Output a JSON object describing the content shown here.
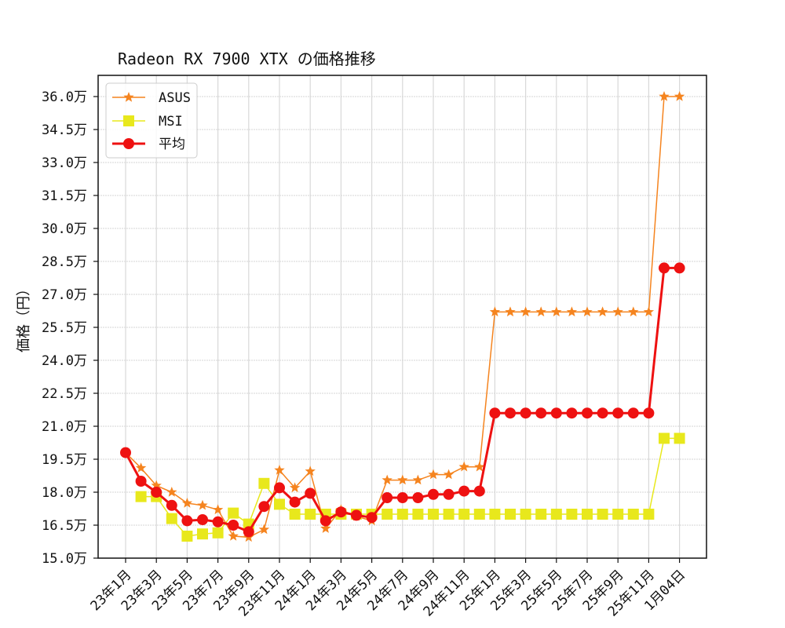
{
  "chart_data": {
    "type": "line",
    "title": "Radeon RX 7900 XTX の価格推移",
    "xlabel": "",
    "ylabel": "価格（円）",
    "ylim": [
      15.0,
      36.0
    ],
    "y_unit": "万",
    "yticks": [
      "15.0万",
      "16.5万",
      "18.0万",
      "19.5万",
      "21.0万",
      "22.5万",
      "24.0万",
      "25.5万",
      "27.0万",
      "28.5万",
      "30.0万",
      "31.5万",
      "33.0万",
      "34.5万",
      "36.0万"
    ],
    "ytick_values": [
      15.0,
      16.5,
      18.0,
      19.5,
      21.0,
      22.5,
      24.0,
      25.5,
      27.0,
      28.5,
      30.0,
      31.5,
      33.0,
      34.5,
      36.0
    ],
    "xticks": [
      "23年1月",
      "23年3月",
      "23年5月",
      "23年7月",
      "23年9月",
      "23年11月",
      "24年1月",
      "24年3月",
      "24年5月",
      "24年7月",
      "24年9月",
      "24年11月",
      "25年1月",
      "25年3月",
      "25年5月",
      "25年7月",
      "25年9月",
      "25年11月",
      "1月04日"
    ],
    "xtick_indices": [
      0,
      2,
      4,
      6,
      8,
      10,
      12,
      14,
      16,
      18,
      20,
      22,
      24,
      26,
      28,
      30,
      32,
      34,
      36
    ],
    "categories": [
      "23/01",
      "23/02",
      "23/03",
      "23/04",
      "23/05",
      "23/06",
      "23/07",
      "23/08",
      "23/09",
      "23/10",
      "23/11",
      "23/12",
      "24/01",
      "24/02",
      "24/03",
      "24/04",
      "24/05",
      "24/06",
      "24/07",
      "24/08",
      "24/09",
      "24/10",
      "24/11",
      "24/12",
      "25/01",
      "25/02",
      "25/03",
      "25/04",
      "25/05",
      "25/06",
      "25/07",
      "25/08",
      "25/09",
      "25/10",
      "25/11",
      "25/12",
      "1月04日"
    ],
    "grid": true,
    "legend_position": "upper left",
    "series": [
      {
        "name": "ASUS",
        "color": "#f5841f",
        "marker": "star",
        "line_width": 1.5,
        "values": [
          19.8,
          19.1,
          18.3,
          18.0,
          17.5,
          17.4,
          17.2,
          16.0,
          15.95,
          16.3,
          19.0,
          18.2,
          18.95,
          16.35,
          17.2,
          16.9,
          16.7,
          18.55,
          18.55,
          18.55,
          18.8,
          18.8,
          19.15,
          19.15,
          26.2,
          26.2,
          26.2,
          26.2,
          26.2,
          26.2,
          26.2,
          26.2,
          26.2,
          26.2,
          26.2,
          36.0,
          36.0
        ]
      },
      {
        "name": "MSI",
        "color": "#e8e81c",
        "marker": "square",
        "line_width": 1.5,
        "values": [
          null,
          17.8,
          17.8,
          16.8,
          16.0,
          16.1,
          16.15,
          17.05,
          16.55,
          18.4,
          17.45,
          17.0,
          17.0,
          17.0,
          17.0,
          17.0,
          17.0,
          17.0,
          17.0,
          17.0,
          17.0,
          17.0,
          17.0,
          17.0,
          17.0,
          17.0,
          17.0,
          17.0,
          17.0,
          17.0,
          17.0,
          17.0,
          17.0,
          17.0,
          17.0,
          20.45,
          20.45
        ]
      },
      {
        "name": "平均",
        "color": "#ee1111",
        "marker": "circle",
        "line_width": 3,
        "values": [
          19.8,
          18.5,
          18.0,
          17.4,
          16.7,
          16.75,
          16.65,
          16.5,
          16.2,
          17.35,
          18.2,
          17.55,
          17.95,
          16.7,
          17.1,
          16.95,
          16.85,
          17.75,
          17.75,
          17.75,
          17.9,
          17.9,
          18.05,
          18.05,
          21.6,
          21.6,
          21.6,
          21.6,
          21.6,
          21.6,
          21.6,
          21.6,
          21.6,
          21.6,
          21.6,
          28.2,
          28.2
        ]
      }
    ]
  },
  "legend": {
    "items": [
      {
        "label": "ASUS"
      },
      {
        "label": "MSI"
      },
      {
        "label": "平均"
      }
    ]
  }
}
